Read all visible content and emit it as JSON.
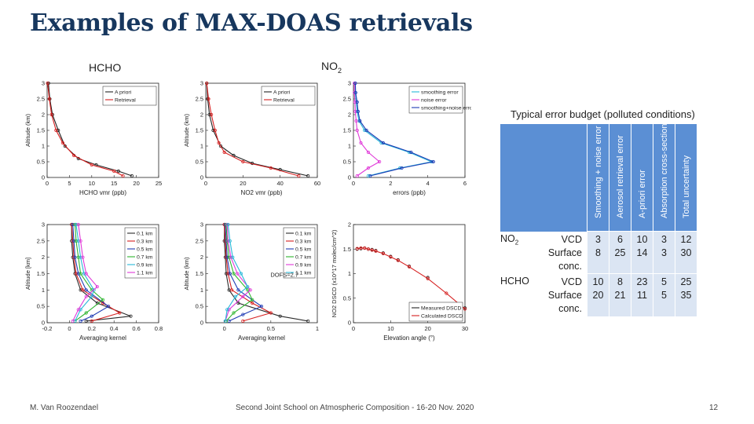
{
  "slide": {
    "title": "Examples of MAX-DOAS retrievals",
    "label_hcho": "HCHO",
    "label_no2": "NO",
    "label_no2_sub": "2",
    "footer_left": "M. Van Roozendael",
    "footer_center": "Second Joint School on Atmospheric Composition - 16-20 Nov. 2020",
    "page_number": "12"
  },
  "table": {
    "title": "Typical error budget (polluted conditions)",
    "headers": [
      "Smoothing + noise error",
      "Aerosol retrieval error",
      "A-priori error",
      "Absorption cross-sections",
      "Total uncertainty"
    ],
    "rows": [
      {
        "species": "NO2",
        "species_main": "NO",
        "species_sub": "2",
        "lines": [
          "VCD",
          "Surface conc."
        ],
        "values": [
          [
            "3",
            "8"
          ],
          [
            "6",
            "25"
          ],
          [
            "10",
            "14"
          ],
          [
            "3",
            "3"
          ],
          [
            "12",
            "30"
          ]
        ]
      },
      {
        "species": "HCHO",
        "species_main": "HCHO",
        "species_sub": "",
        "lines": [
          "VCD",
          "Surface conc."
        ],
        "values": [
          [
            "10",
            "20"
          ],
          [
            "8",
            "21"
          ],
          [
            "23",
            "11"
          ],
          [
            "5",
            "5"
          ],
          [
            "25",
            "35"
          ]
        ]
      }
    ]
  },
  "chart_data": [
    {
      "type": "line",
      "panel": "HCHO vmr profile",
      "xlabel": "HCHO vmr (ppb)",
      "ylabel": "Altitude (km)",
      "xlim": [
        0,
        25
      ],
      "ylim": [
        0,
        3
      ],
      "xticks": [
        0,
        5,
        10,
        15,
        20,
        25
      ],
      "yticks": [
        0,
        0.5,
        1,
        1.5,
        2,
        2.5,
        3
      ],
      "legend": "top-right",
      "series": [
        {
          "name": "A priori",
          "color": "#222222",
          "x": [
            0.3,
            0.6,
            1.2,
            2.5,
            4,
            7,
            11,
            16,
            19
          ],
          "y": [
            3,
            2.5,
            2,
            1.5,
            1,
            0.6,
            0.4,
            0.2,
            0.05
          ]
        },
        {
          "name": "Retrieval",
          "color": "#d62020",
          "x": [
            0.1,
            0.5,
            1.0,
            2.0,
            3.5,
            6,
            10,
            15,
            17
          ],
          "y": [
            3,
            2.5,
            2,
            1.5,
            1.1,
            0.7,
            0.4,
            0.2,
            0.05
          ]
        }
      ]
    },
    {
      "type": "line",
      "panel": "NO2 vmr profile",
      "xlabel": "NO2 vmr (ppb)",
      "ylabel": "Altitude (km)",
      "xlim": [
        0,
        60
      ],
      "ylim": [
        0,
        3
      ],
      "xticks": [
        0,
        20,
        40,
        60
      ],
      "yticks": [
        0,
        0.5,
        1,
        1.5,
        2,
        2.5,
        3
      ],
      "legend": "top-right",
      "series": [
        {
          "name": "A priori",
          "color": "#222222",
          "x": [
            0.5,
            1,
            2,
            4,
            8,
            15,
            25,
            40,
            55
          ],
          "y": [
            3,
            2.5,
            2,
            1.5,
            1,
            0.7,
            0.45,
            0.25,
            0.05
          ]
        },
        {
          "name": "Retrieval",
          "color": "#d62020",
          "x": [
            0.5,
            1.5,
            3,
            5,
            7,
            10,
            20,
            35,
            50
          ],
          "y": [
            3,
            2.5,
            2,
            1.5,
            1.1,
            0.8,
            0.5,
            0.3,
            0.05
          ]
        }
      ]
    },
    {
      "type": "line",
      "panel": "error profiles",
      "xlabel": "errors (ppb)",
      "ylabel": "",
      "xlim": [
        0,
        6
      ],
      "ylim": [
        0,
        3
      ],
      "xticks": [
        0,
        2,
        4,
        6
      ],
      "yticks": [
        0,
        0.5,
        1,
        1.5,
        2,
        2.5,
        3
      ],
      "legend": "top-right",
      "series": [
        {
          "name": "smoothing error",
          "color": "#27b7d8",
          "x": [
            0.1,
            0.1,
            0.15,
            0.2,
            0.3,
            0.6,
            1.5,
            3.0,
            4.2,
            2.5,
            0.8
          ],
          "y": [
            3,
            2.7,
            2.4,
            2.1,
            1.8,
            1.5,
            1.1,
            0.8,
            0.5,
            0.3,
            0.05
          ]
        },
        {
          "name": "noise error",
          "color": "#e03ad8",
          "x": [
            0.05,
            0.05,
            0.08,
            0.1,
            0.15,
            0.2,
            0.4,
            0.8,
            1.4,
            0.8,
            0.2
          ],
          "y": [
            3,
            2.7,
            2.4,
            2.1,
            1.8,
            1.5,
            1.1,
            0.8,
            0.5,
            0.3,
            0.05
          ]
        },
        {
          "name": "smoothing+noise errors",
          "color": "#1e3bb4",
          "x": [
            0.1,
            0.12,
            0.2,
            0.25,
            0.35,
            0.7,
            1.6,
            3.1,
            4.3,
            2.6,
            0.9
          ],
          "y": [
            3,
            2.7,
            2.4,
            2.1,
            1.8,
            1.5,
            1.1,
            0.8,
            0.5,
            0.3,
            0.05
          ]
        }
      ]
    },
    {
      "type": "line",
      "panel": "HCHO averaging kernels",
      "xlabel": "Averaging kernel",
      "ylabel": "Altitude [km]",
      "xlim": [
        -0.2,
        0.8
      ],
      "ylim": [
        0,
        3
      ],
      "xticks": [
        -0.2,
        0,
        0.2,
        0.4,
        0.6,
        0.8
      ],
      "yticks": [
        0,
        0.5,
        1,
        1.5,
        2,
        2.5,
        3
      ],
      "legend": "right",
      "series": [
        {
          "name": "0.1 km",
          "color": "#2a2a2a",
          "x": [
            0.02,
            0.02,
            0.03,
            0.05,
            0.1,
            0.25,
            0.55,
            0.15
          ],
          "y": [
            3,
            2.5,
            2,
            1.5,
            1,
            0.6,
            0.2,
            0.05
          ]
        },
        {
          "name": "0.3 km",
          "color": "#d62020",
          "x": [
            0.02,
            0.03,
            0.04,
            0.06,
            0.12,
            0.3,
            0.45,
            0.2
          ],
          "y": [
            3,
            2.5,
            2,
            1.5,
            1,
            0.6,
            0.3,
            0.05
          ]
        },
        {
          "name": "0.5 km",
          "color": "#1e3bb4",
          "x": [
            0.03,
            0.04,
            0.05,
            0.08,
            0.15,
            0.35,
            0.2,
            0.1
          ],
          "y": [
            3,
            2.5,
            2,
            1.5,
            1,
            0.5,
            0.2,
            0.05
          ]
        },
        {
          "name": "0.7 km",
          "color": "#2fb52f",
          "x": [
            0.05,
            0.06,
            0.08,
            0.1,
            0.2,
            0.3,
            0.15,
            0.05
          ],
          "y": [
            3,
            2.5,
            2,
            1.5,
            1,
            0.7,
            0.3,
            0.05
          ]
        },
        {
          "name": "0.9 km",
          "color": "#27b7d8",
          "x": [
            0.06,
            0.08,
            0.1,
            0.13,
            0.22,
            0.2,
            0.1,
            0.05
          ],
          "y": [
            3,
            2.5,
            2,
            1.5,
            1,
            0.8,
            0.4,
            0.05
          ]
        },
        {
          "name": "1.1 km",
          "color": "#e03ad8",
          "x": [
            0.08,
            0.1,
            0.12,
            0.15,
            0.25,
            0.15,
            0.08,
            0.03
          ],
          "y": [
            3,
            2.5,
            2,
            1.5,
            1.1,
            0.8,
            0.4,
            0.05
          ]
        }
      ]
    },
    {
      "type": "line",
      "panel": "NO2 averaging kernels",
      "xlabel": "Averaging kernel",
      "ylabel": "Altitude (km)",
      "xlim": [
        -0.2,
        1
      ],
      "ylim": [
        0,
        3
      ],
      "xticks": [
        0,
        0.5,
        1
      ],
      "yticks": [
        0,
        0.5,
        1,
        1.5,
        2,
        2.5,
        3
      ],
      "legend": "top-right",
      "annotation": "DOFS=2.7",
      "series": [
        {
          "name": "0.1 km",
          "color": "#2a2a2a",
          "x": [
            0,
            0,
            0.01,
            0.02,
            0.05,
            0.15,
            0.6,
            0.9
          ],
          "y": [
            3,
            2.5,
            2,
            1.5,
            1,
            0.6,
            0.2,
            0.05
          ]
        },
        {
          "name": "0.3 km",
          "color": "#d62020",
          "x": [
            0,
            0.01,
            0.02,
            0.04,
            0.08,
            0.3,
            0.5,
            0.2
          ],
          "y": [
            3,
            2.5,
            2,
            1.5,
            1,
            0.6,
            0.3,
            0.05
          ]
        },
        {
          "name": "0.5 km",
          "color": "#1e3bb4",
          "x": [
            0.01,
            0.02,
            0.03,
            0.06,
            0.15,
            0.4,
            0.2,
            0.05
          ],
          "y": [
            3,
            2.5,
            2,
            1.5,
            1,
            0.5,
            0.25,
            0.05
          ]
        },
        {
          "name": "0.7 km",
          "color": "#2fb52f",
          "x": [
            0.02,
            0.03,
            0.05,
            0.1,
            0.25,
            0.3,
            0.1,
            0.02
          ],
          "y": [
            3,
            2.5,
            2,
            1.5,
            1,
            0.7,
            0.3,
            0.05
          ]
        },
        {
          "name": "0.9 km",
          "color": "#e03ad8",
          "x": [
            0.03,
            0.04,
            0.07,
            0.14,
            0.28,
            0.2,
            0.05,
            0.01
          ],
          "y": [
            3,
            2.5,
            2,
            1.5,
            1,
            0.8,
            0.4,
            0.05
          ]
        },
        {
          "name": "1.1 km",
          "color": "#27b7d8",
          "x": [
            0.04,
            0.06,
            0.09,
            0.18,
            0.25,
            0.12,
            0.03,
            0.01
          ],
          "y": [
            3,
            2.5,
            2,
            1.5,
            1.1,
            0.8,
            0.4,
            0.05
          ]
        }
      ]
    },
    {
      "type": "scatter",
      "panel": "NO2 DSCD vs elevation",
      "xlabel": "Elevation angle (°)",
      "ylabel": "NO2 DSCD (x10^17 molec/cm^2)",
      "xlim": [
        0,
        30
      ],
      "ylim": [
        0,
        2
      ],
      "xticks": [
        0,
        10,
        20,
        30
      ],
      "yticks": [
        0,
        0.5,
        1,
        1.5,
        2
      ],
      "legend": "bottom-right",
      "series": [
        {
          "name": "Measured DSCD",
          "color": "#222222",
          "x": [
            1,
            2,
            3,
            4,
            5,
            6,
            8,
            10,
            12,
            15,
            20,
            30
          ],
          "y": [
            1.5,
            1.51,
            1.52,
            1.5,
            1.49,
            1.47,
            1.42,
            1.35,
            1.28,
            1.15,
            0.92,
            0.3
          ]
        },
        {
          "name": "Calculated DSCD",
          "color": "#d62020",
          "x": [
            1,
            2,
            3,
            4,
            5,
            6,
            8,
            10,
            12,
            15,
            20,
            25,
            30
          ],
          "y": [
            1.51,
            1.52,
            1.52,
            1.5,
            1.48,
            1.46,
            1.41,
            1.34,
            1.27,
            1.14,
            0.9,
            0.6,
            0.28
          ]
        }
      ]
    }
  ]
}
